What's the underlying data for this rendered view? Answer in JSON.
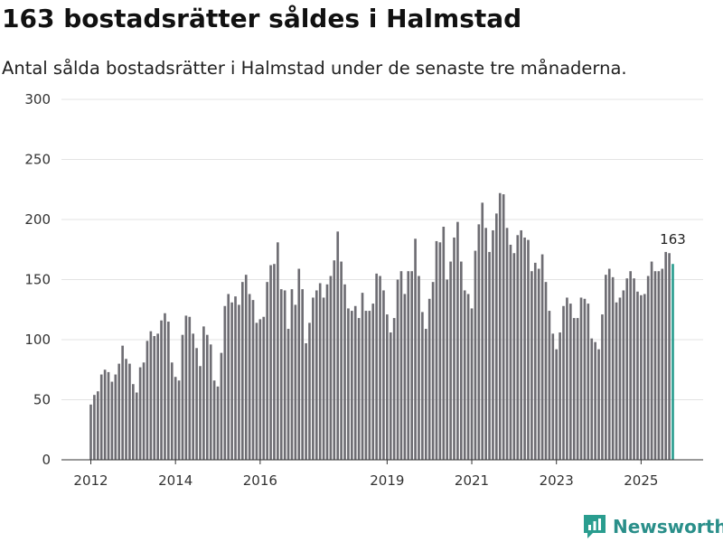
{
  "header": {
    "title": "163 bostadsrätter såldes i Halmstad",
    "subtitle": "Antal sålda bostadsrätter i Halmstad under de senaste tre månaderna."
  },
  "brand": {
    "name": "Newsworthy",
    "icon": "newsworthy-logo-icon",
    "color": "#2a9d8f"
  },
  "chart_data": {
    "type": "bar",
    "title": "163 bostadsrätter såldes i Halmstad",
    "subtitle": "Antal sålda bostadsrätter i Halmstad under de senaste tre månaderna.",
    "xlabel": "",
    "ylabel": "",
    "ylim": [
      0,
      300
    ],
    "yticks": [
      0,
      50,
      100,
      150,
      200,
      250,
      300
    ],
    "xticks": [
      {
        "label": "2012",
        "index": 0
      },
      {
        "label": "2014",
        "index": 24
      },
      {
        "label": "2016",
        "index": 48
      },
      {
        "label": "2019",
        "index": 84
      },
      {
        "label": "2021",
        "index": 108
      },
      {
        "label": "2023",
        "index": 132
      },
      {
        "label": "2025",
        "index": 156
      }
    ],
    "grid": true,
    "bar_color": "#6e6d73",
    "highlight_color": "#2a9d8f",
    "highlight_last": true,
    "last_label": "163",
    "values": [
      46,
      54,
      57,
      71,
      75,
      73,
      65,
      71,
      80,
      95,
      84,
      80,
      63,
      56,
      77,
      81,
      99,
      107,
      103,
      105,
      116,
      122,
      115,
      81,
      69,
      66,
      104,
      120,
      119,
      105,
      93,
      78,
      111,
      104,
      96,
      66,
      61,
      89,
      128,
      138,
      131,
      136,
      129,
      148,
      154,
      138,
      133,
      114,
      117,
      119,
      148,
      162,
      163,
      181,
      142,
      141,
      109,
      142,
      129,
      159,
      142,
      97,
      114,
      135,
      141,
      147,
      135,
      146,
      153,
      166,
      190,
      165,
      146,
      126,
      124,
      128,
      118,
      139,
      124,
      124,
      130,
      155,
      153,
      141,
      121,
      106,
      118,
      150,
      157,
      138,
      157,
      157,
      184,
      153,
      123,
      109,
      134,
      148,
      182,
      181,
      194,
      150,
      165,
      185,
      198,
      165,
      141,
      138,
      126,
      174,
      196,
      214,
      193,
      173,
      191,
      205,
      222,
      221,
      193,
      179,
      172,
      187,
      191,
      185,
      183,
      157,
      164,
      159,
      171,
      148,
      124,
      105,
      92,
      106,
      128,
      135,
      130,
      118,
      118,
      135,
      134,
      130,
      101,
      98,
      92,
      121,
      154,
      159,
      152,
      131,
      135,
      141,
      151,
      157,
      151,
      140,
      137,
      138,
      153,
      165,
      157,
      157,
      159,
      173,
      172,
      163
    ]
  }
}
